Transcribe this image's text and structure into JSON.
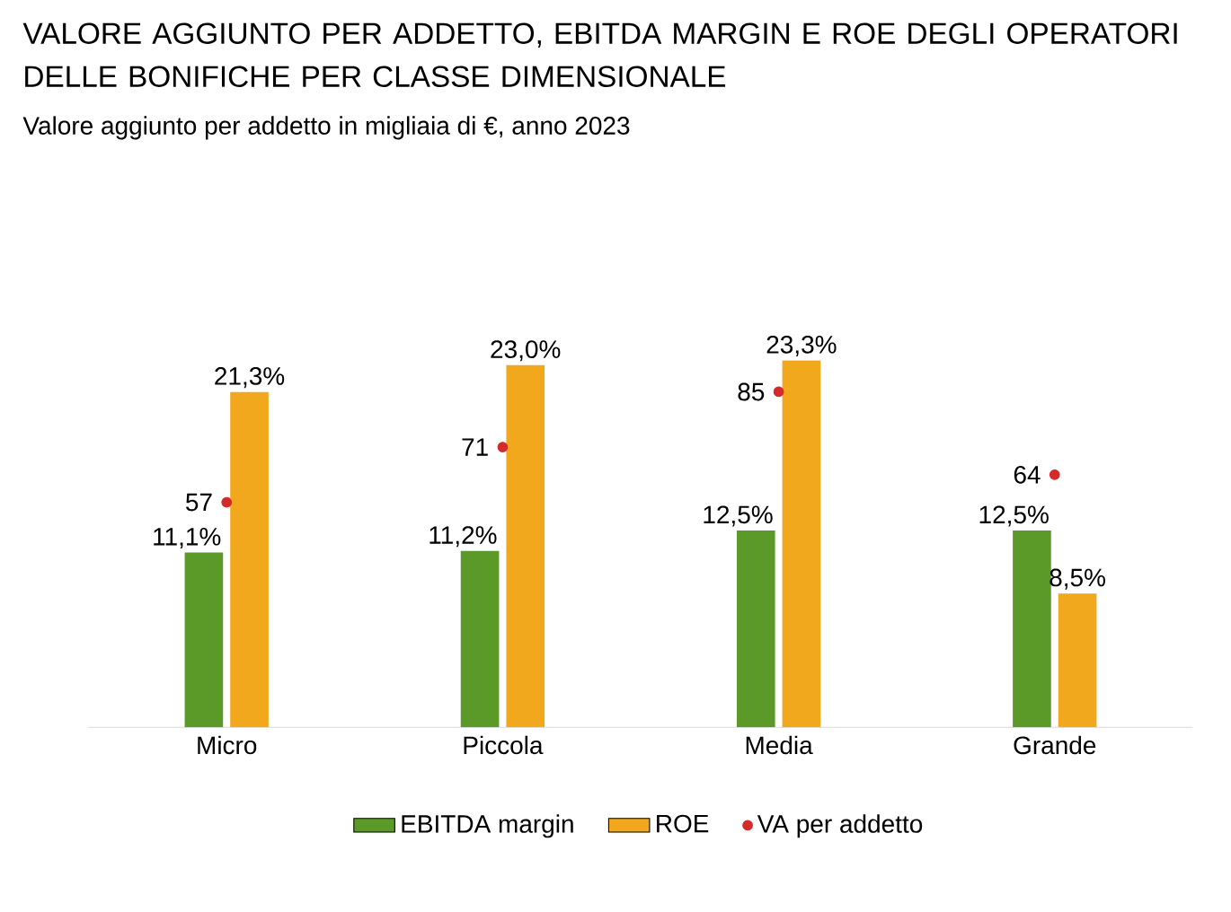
{
  "chart_data": {
    "type": "bar",
    "title": "VALORE AGGIUNTO PER ADDETTO, EBITDA MARGIN E ROE DEGLI OPERATORI DELLE BONIFICHE PER CLASSE DIMENSIONALE",
    "subtitle": "Valore aggiunto per addetto in migliaia di €, anno 2023",
    "categories": [
      "Micro",
      "Piccola",
      "Media",
      "Grande"
    ],
    "legend": "bottom",
    "grid": false,
    "series": [
      {
        "name": "EBITDA margin",
        "color": "#5b9a28",
        "values": [
          11.1,
          11.2,
          12.5,
          12.5
        ],
        "value_labels": [
          "11,1%",
          "11,2%",
          "12,5%",
          "12,5%"
        ]
      },
      {
        "name": "ROE",
        "color": "#f2a81d",
        "values": [
          21.3,
          23.0,
          23.3,
          8.5
        ],
        "value_labels": [
          "21,3%",
          "23,0%",
          "23,3%",
          "8,5%"
        ]
      },
      {
        "name": "VA per addetto",
        "type": "scatter",
        "axis": "y2",
        "color": "#d42a2a",
        "values": [
          57,
          71,
          85,
          64
        ],
        "value_labels": [
          "57",
          "71",
          "85",
          "64"
        ]
      }
    ]
  }
}
